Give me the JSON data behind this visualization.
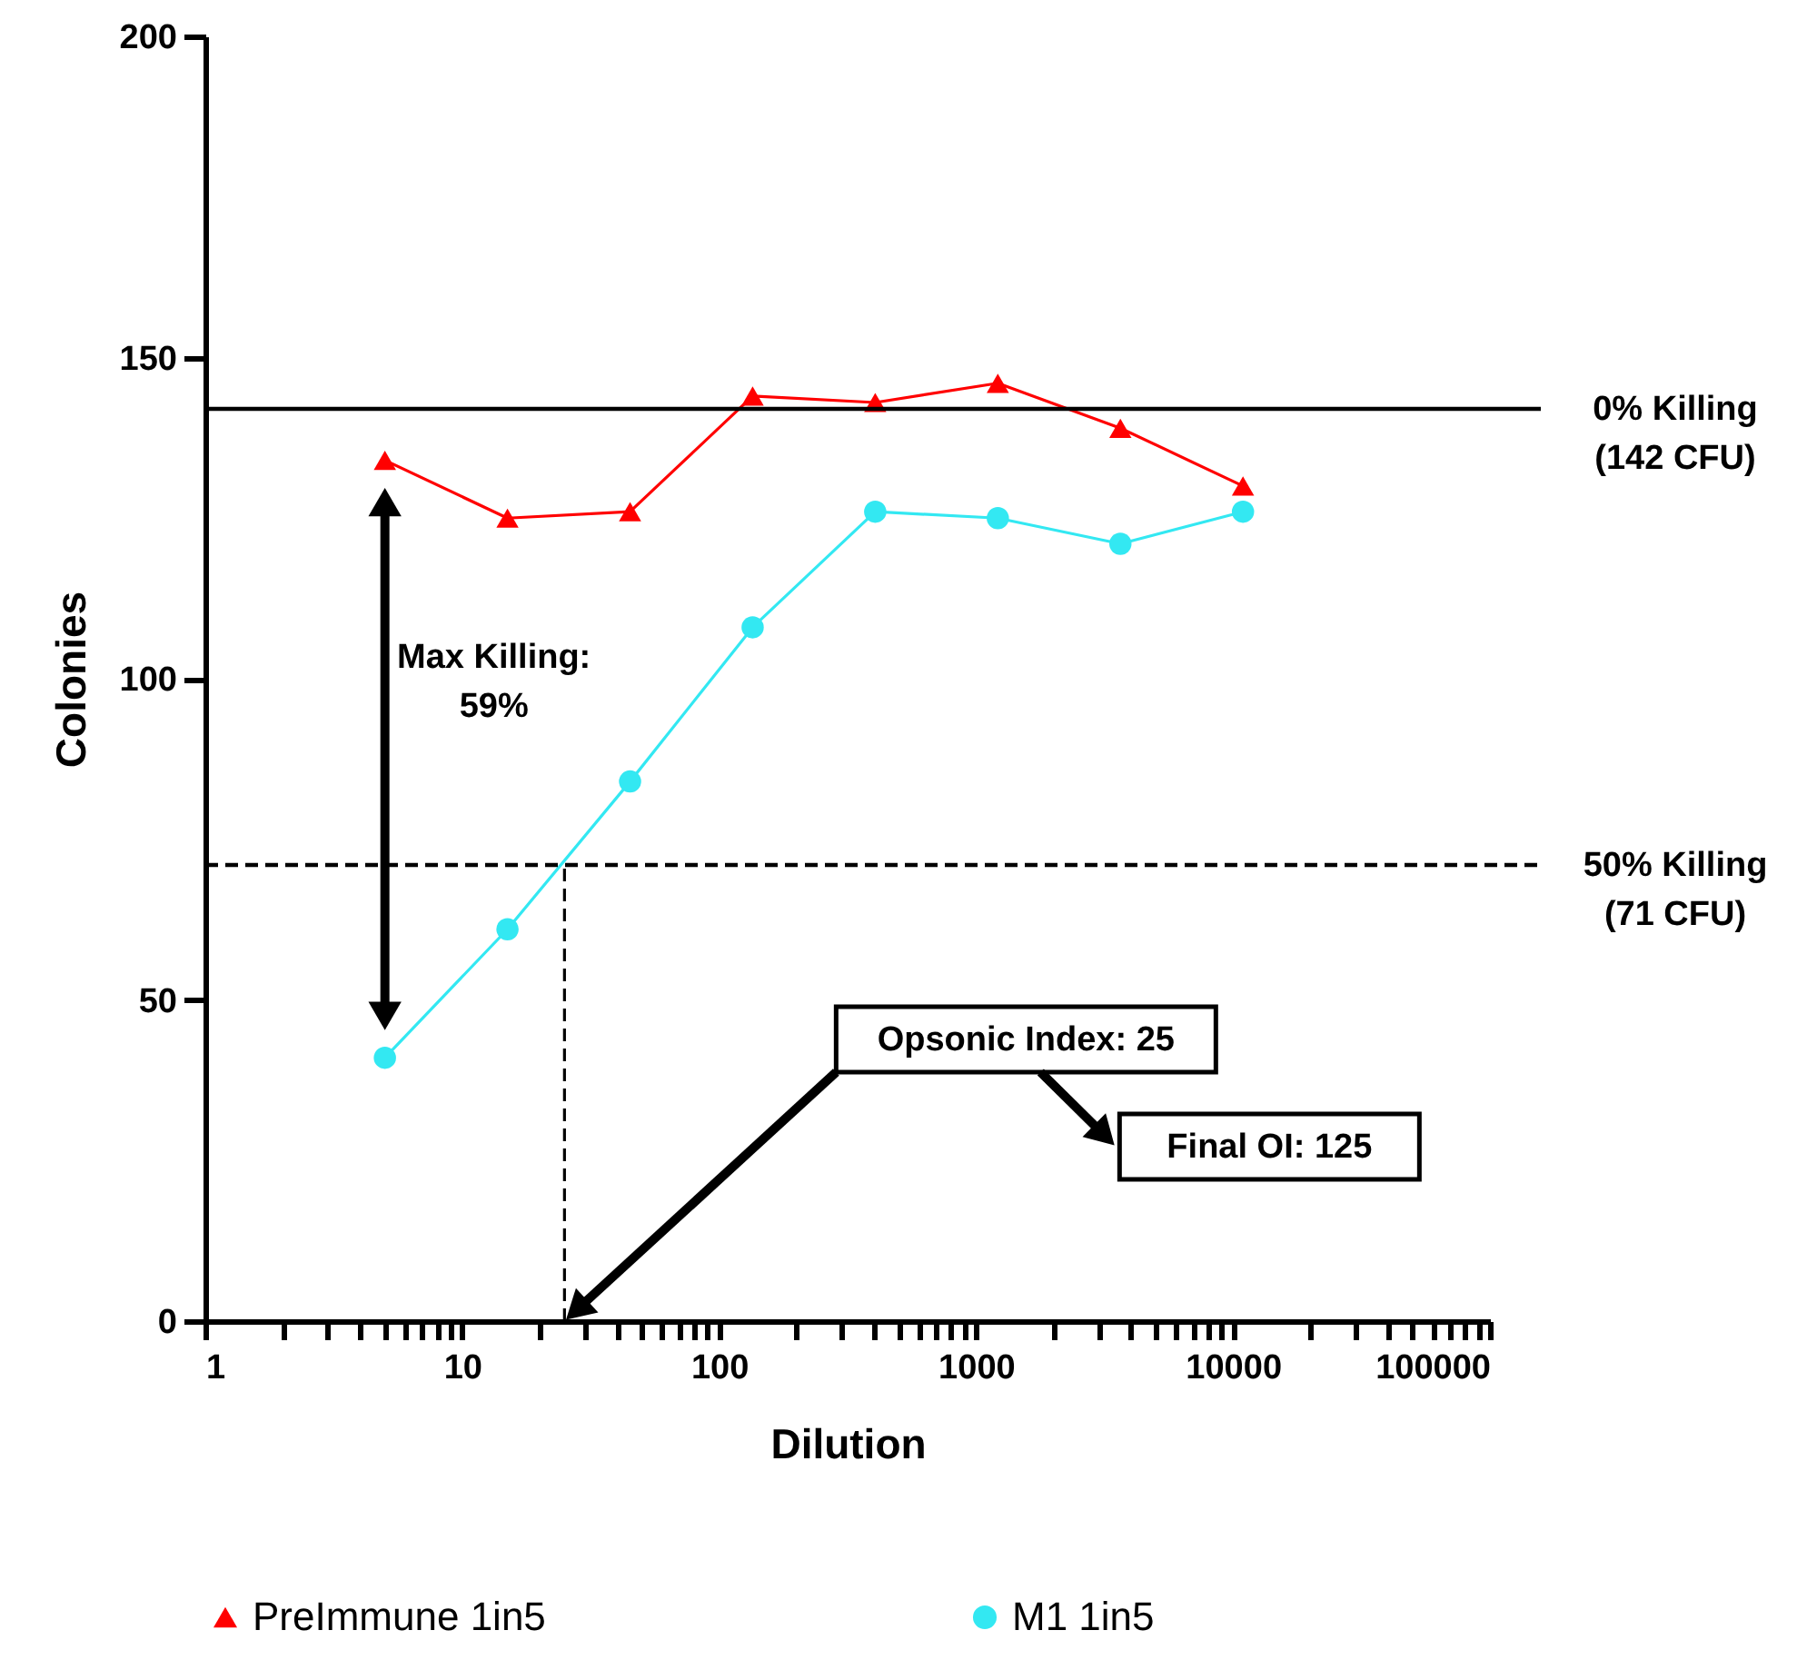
{
  "chart_data": {
    "type": "line",
    "xlabel": "Dilution",
    "ylabel": "Colonies",
    "log": "x",
    "xlim": [
      1,
      100000
    ],
    "ylim": [
      0,
      200
    ],
    "xticks": [
      1,
      {
        "value": 2,
        "label": null
      },
      {
        "value": 3,
        "label": null
      },
      {
        "value": 4,
        "label": null
      },
      {
        "value": 5,
        "label": null
      },
      {
        "value": 6,
        "label": null
      },
      {
        "value": 7,
        "label": null
      },
      {
        "value": 8,
        "label": null
      },
      {
        "value": 9,
        "label": null
      },
      10,
      {
        "value": 20,
        "label": null
      },
      {
        "value": 30,
        "label": null
      },
      {
        "value": 40,
        "label": null
      },
      {
        "value": 50,
        "label": null
      },
      {
        "value": 60,
        "label": null
      },
      {
        "value": 70,
        "label": null
      },
      {
        "value": 80,
        "label": null
      },
      {
        "value": 90,
        "label": null
      },
      100,
      {
        "value": 200,
        "label": null
      },
      {
        "value": 300,
        "label": null
      },
      {
        "value": 400,
        "label": null
      },
      {
        "value": 500,
        "label": null
      },
      {
        "value": 600,
        "label": null
      },
      {
        "value": 700,
        "label": null
      },
      {
        "value": 800,
        "label": null
      },
      {
        "value": 900,
        "label": null
      },
      1000,
      {
        "value": 2000,
        "label": null
      },
      {
        "value": 3000,
        "label": null
      },
      {
        "value": 4000,
        "label": null
      },
      {
        "value": 5000,
        "label": null
      },
      {
        "value": 6000,
        "label": null
      },
      {
        "value": 7000,
        "label": null
      },
      {
        "value": 8000,
        "label": null
      },
      {
        "value": 9000,
        "label": null
      },
      10000,
      {
        "value": 20000,
        "label": null
      },
      {
        "value": 30000,
        "label": null
      },
      {
        "value": 40000,
        "label": null
      },
      {
        "value": 50000,
        "label": null
      },
      {
        "value": 60000,
        "label": null
      },
      {
        "value": 70000,
        "label": null
      },
      {
        "value": 80000,
        "label": null
      },
      {
        "value": 90000,
        "label": null
      },
      100000
    ],
    "yticks": [
      0,
      50,
      100,
      150,
      200
    ],
    "grid": false,
    "legend": "bottom",
    "series": [
      {
        "name": "PreImmune 1in5",
        "color": "#ff0000",
        "marker": "triangle",
        "x": [
          5,
          15,
          45,
          135,
          405,
          1215,
          3645,
          10935
        ],
        "values": [
          134,
          125,
          126,
          144,
          143,
          146,
          139,
          130
        ]
      },
      {
        "name": "M1 1in5",
        "color": "#33e8f2",
        "marker": "circle",
        "x": [
          5,
          15,
          45,
          135,
          405,
          1215,
          3645,
          10935
        ],
        "values": [
          41,
          61,
          84,
          108,
          126,
          125,
          121,
          126
        ]
      },
      {
        "color": "#000000",
        "line_style": "dashed",
        "x": [
          25,
          25
        ],
        "values": [
          0,
          71
        ]
      }
    ],
    "ref_lines": [
      {
        "axis": "y",
        "value": 142,
        "label": "0% Killing (142 CFU)",
        "color": "#000000",
        "line_style": "solid"
      },
      {
        "axis": "y",
        "value": 71,
        "label": "50% Killing (71 CFU)",
        "color": "#000000",
        "line_style": "dashed"
      }
    ],
    "annotations": [
      "Max Killing: 59%",
      "Opsonic Index: 25",
      "Final OI: 125"
    ]
  }
}
